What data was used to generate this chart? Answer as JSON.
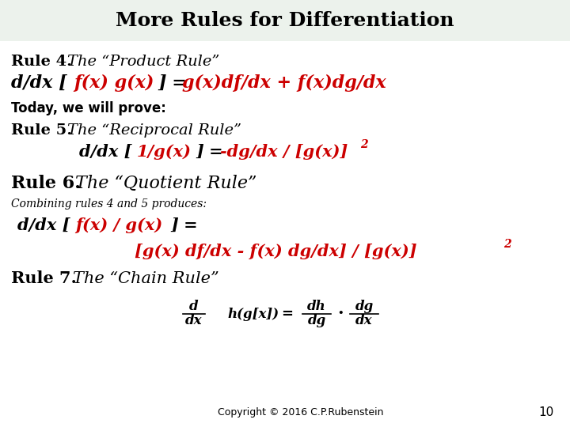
{
  "title": "More Rules for Differentiation",
  "title_fontsize": 18,
  "title_color": "#000000",
  "title_bg_color": "#ecf2ec",
  "body_bg_color": "#ffffff",
  "red_color": "#cc0000",
  "black_color": "#000000",
  "copyright": "Copyright © 2016 C.P.Rubenstein",
  "page_number": "10",
  "rule4_head_black": "Rule 4. ",
  "rule4_head_italic": "The “Product Rule”",
  "rule4_formula_b1": "d/dx [",
  "rule4_formula_r1": "f(x) g(x)",
  "rule4_formula_b2": "] = ",
  "rule4_formula_r2": "g(x)df/dx + f(x)dg/dx",
  "today": "Today, we will prove:",
  "rule5_head_black": "Rule 5. ",
  "rule5_head_italic": "The “Reciprocal Rule”",
  "rule5_formula_b1": "d/dx [",
  "rule5_formula_r1": "1/g(x)",
  "rule5_formula_b2": "] = ",
  "rule5_formula_r2": "-dg/dx / [g(x)]",
  "rule5_sup": "2",
  "rule6_head_black": "Rule 6. ",
  "rule6_head_italic": "The “Quotient Rule”",
  "combining": "Combining rules 4 and 5 produces:",
  "rule6_f_b1": "d/dx [",
  "rule6_f_r1": "f(x) / g(x)",
  "rule6_f_b2": "] = ",
  "rule6_f_r2": "[g(x) df/dx - f(x) dg/dx] / [g(x)]",
  "rule6_sup": "2",
  "rule7_head_black": "Rule 7. ",
  "rule7_head_italic": "The “Chain Rule”"
}
